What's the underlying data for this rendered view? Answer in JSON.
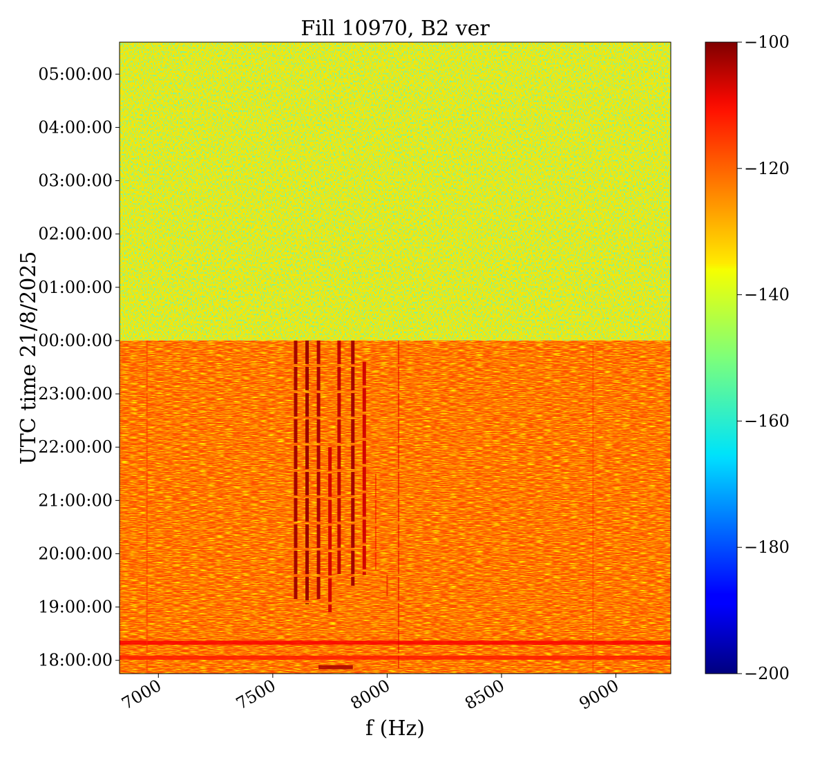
{
  "chart_data": {
    "type": "heatmap",
    "title": "Fill 10970, B2 ver",
    "xlabel": "f (Hz)",
    "ylabel": "UTC time 21/8/2025",
    "xlim": [
      6830,
      9240
    ],
    "x_ticks": [
      {
        "value": 7000,
        "label": "7000"
      },
      {
        "value": 7500,
        "label": "7500"
      },
      {
        "value": 8000,
        "label": "8000"
      },
      {
        "value": 8500,
        "label": "8500"
      },
      {
        "value": 9000,
        "label": "9000"
      }
    ],
    "ylim_hours": [
      17.75,
      29.6
    ],
    "y_ticks": [
      {
        "value": 18,
        "label": "18:00:00"
      },
      {
        "value": 19,
        "label": "19:00:00"
      },
      {
        "value": 20,
        "label": "20:00:00"
      },
      {
        "value": 21,
        "label": "21:00:00"
      },
      {
        "value": 22,
        "label": "22:00:00"
      },
      {
        "value": 23,
        "label": "23:00:00"
      },
      {
        "value": 24,
        "label": "00:00:00"
      },
      {
        "value": 25,
        "label": "01:00:00"
      },
      {
        "value": 26,
        "label": "02:00:00"
      },
      {
        "value": 27,
        "label": "03:00:00"
      },
      {
        "value": 28,
        "label": "04:00:00"
      },
      {
        "value": 29,
        "label": "05:00:00"
      }
    ],
    "colorbar": {
      "colormap": "jet",
      "min": -200,
      "max": -100,
      "ticks": [
        {
          "value": -100,
          "label": "−100"
        },
        {
          "value": -120,
          "label": "−120"
        },
        {
          "value": -140,
          "label": "−140"
        },
        {
          "value": -160,
          "label": "−160"
        },
        {
          "value": -180,
          "label": "−180"
        },
        {
          "value": -200,
          "label": "−200"
        }
      ]
    },
    "regions": [
      {
        "time_from": 24.0,
        "time_to": 29.6,
        "level": -135
      },
      {
        "time_from": 17.75,
        "time_to": 24.0,
        "level": -120
      }
    ],
    "lines": [
      {
        "f": 7600,
        "level": -103,
        "time_from": 19.15,
        "time_to": 24.0
      },
      {
        "f": 7650,
        "level": -102,
        "time_from": 19.05,
        "time_to": 24.0
      },
      {
        "f": 7700,
        "level": -104,
        "time_from": 19.15,
        "time_to": 24.0
      },
      {
        "f": 7750,
        "level": -108,
        "time_from": 18.9,
        "time_to": 22.0
      },
      {
        "f": 7790,
        "level": -106,
        "time_from": 19.6,
        "time_to": 24.0
      },
      {
        "f": 7850,
        "level": -103,
        "time_from": 19.4,
        "time_to": 24.0
      },
      {
        "f": 7900,
        "level": -108,
        "time_from": 19.6,
        "time_to": 23.6
      },
      {
        "f": 7950,
        "level": -112,
        "time_from": 19.7,
        "time_to": 21.5
      },
      {
        "f": 8000,
        "level": -110,
        "time_from": 19.2,
        "time_to": 19.6
      },
      {
        "f": 8050,
        "level": -110,
        "time_from": 17.85,
        "time_to": 24.0
      },
      {
        "f": 6950,
        "level": -117,
        "time_from": 17.8,
        "time_to": 24.0
      },
      {
        "f": 8900,
        "level": -117,
        "time_from": 17.8,
        "time_to": 23.9
      }
    ],
    "bands": [
      {
        "time": 18.33,
        "level": -112,
        "f_from": 6830,
        "f_to": 9240
      },
      {
        "time": 18.05,
        "level": -115,
        "f_from": 6830,
        "f_to": 9240
      },
      {
        "time": 17.87,
        "level": -104,
        "f_from": 7700,
        "f_to": 7850
      }
    ]
  }
}
